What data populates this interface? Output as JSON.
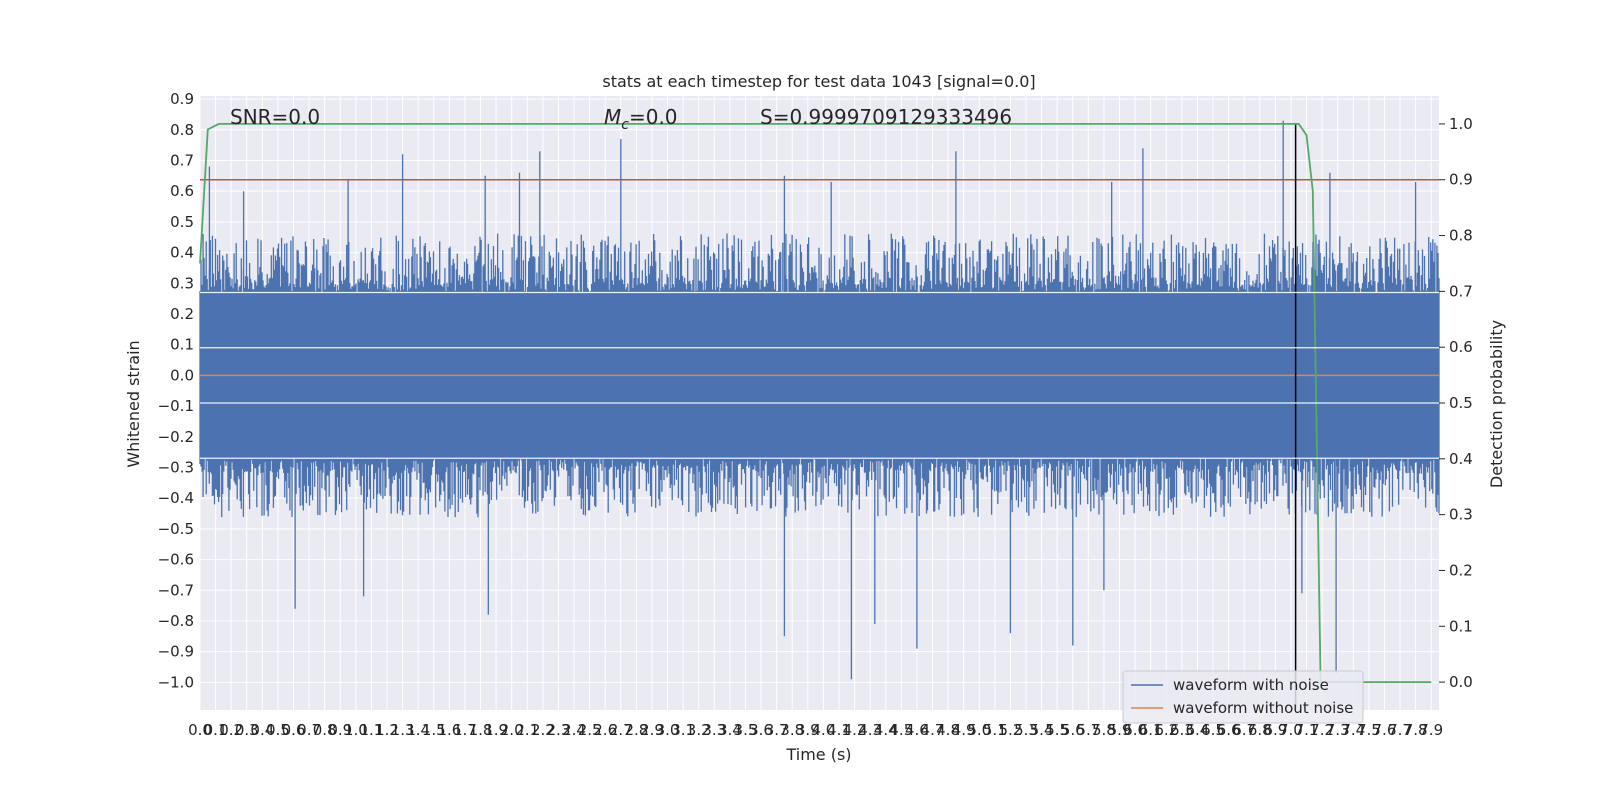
{
  "chart_data": {
    "type": "line",
    "title": "stats at each timestep for test data 1043 [signal=0.0]",
    "xlabel": "Time (s)",
    "ylabel": "Whitened strain",
    "y2label": "Detection probability",
    "xlim": [
      0.0,
      7.95
    ],
    "ylim": [
      -1.09,
      0.91
    ],
    "y2lim": [
      -0.05,
      1.05
    ],
    "grid": true,
    "legend_position": "lower-right",
    "x_ticks": [
      "0.0",
      "0.1",
      "0.2",
      "0.3",
      "0.4",
      "0.5",
      "0.6",
      "0.7",
      "0.8",
      "0.9",
      "1.0",
      "1.1",
      "1.2",
      "1.3",
      "1.4",
      "1.5",
      "1.6",
      "1.7",
      "1.8",
      "1.9",
      "2.0",
      "2.1",
      "2.2",
      "2.3",
      "2.4",
      "2.5",
      "2.6",
      "2.7",
      "2.8",
      "2.9",
      "3.0",
      "3.1",
      "3.2",
      "3.3",
      "3.4",
      "3.5",
      "3.6",
      "3.7",
      "3.8",
      "3.9",
      "4.0",
      "4.1",
      "4.2",
      "4.3",
      "4.4",
      "4.5",
      "4.6",
      "4.7",
      "4.8",
      "4.9",
      "5.0",
      "5.1",
      "5.2",
      "5.3",
      "5.4",
      "5.5",
      "5.6",
      "5.7",
      "5.8",
      "5.9",
      "6.0",
      "6.1",
      "6.2",
      "6.3",
      "6.4",
      "6.5",
      "6.6",
      "6.7",
      "6.8",
      "6.9",
      "7.0",
      "7.1",
      "7.2",
      "7.3",
      "7.4",
      "7.5",
      "7.6",
      "7.7",
      "7.8",
      "7.9"
    ],
    "y_ticks": [
      "0.9",
      "0.8",
      "0.7",
      "0.6",
      "0.5",
      "0.4",
      "0.3",
      "0.2",
      "0.1",
      "0.0",
      "−0.1",
      "−0.2",
      "−0.3",
      "−0.4",
      "−0.5",
      "−0.6",
      "−0.7",
      "−0.8",
      "−0.9",
      "−1.0"
    ],
    "y2_ticks": [
      "0.0",
      "0.1",
      "0.2",
      "0.3",
      "0.4",
      "0.5",
      "0.6",
      "0.7",
      "0.8",
      "0.9",
      "1.0"
    ],
    "annotations": {
      "snr": "SNR=0.0",
      "mc_symbol": "M",
      "mc_sub": "c",
      "mc_value": "=0.0",
      "s": "S=0.9999709129333496"
    },
    "series": [
      {
        "name": "waveform with noise",
        "color": "#4c72b0",
        "axis": "left",
        "band_envelope": {
          "typical_amplitude": 0.44,
          "spikes_high": [
            [
              0.06,
              0.68
            ],
            [
              0.28,
              0.6
            ],
            [
              0.95,
              0.64
            ],
            [
              1.3,
              0.72
            ],
            [
              1.83,
              0.65
            ],
            [
              2.05,
              0.66
            ],
            [
              2.18,
              0.73
            ],
            [
              2.7,
              0.77
            ],
            [
              3.75,
              0.65
            ],
            [
              4.05,
              0.63
            ],
            [
              4.85,
              0.73
            ],
            [
              5.85,
              0.63
            ],
            [
              6.05,
              0.74
            ],
            [
              6.95,
              0.83
            ],
            [
              7.25,
              0.66
            ],
            [
              7.8,
              0.63
            ]
          ],
          "spikes_low": [
            [
              0.61,
              -0.76
            ],
            [
              1.05,
              -0.72
            ],
            [
              1.85,
              -0.78
            ],
            [
              3.75,
              -0.85
            ],
            [
              4.18,
              -0.99
            ],
            [
              4.33,
              -0.81
            ],
            [
              4.6,
              -0.89
            ],
            [
              5.2,
              -0.84
            ],
            [
              5.6,
              -0.88
            ],
            [
              5.8,
              -0.7
            ],
            [
              7.07,
              -0.71
            ],
            [
              7.29,
              -0.97
            ]
          ]
        }
      },
      {
        "name": "waveform without noise",
        "color": "#dd8452",
        "axis": "left",
        "x": [
          0.0,
          7.95
        ],
        "y": [
          0.0,
          0.0
        ]
      },
      {
        "name": "detection probability",
        "color": "#55a868",
        "axis": "right",
        "x": [
          0.0,
          0.05,
          0.12,
          0.5,
          1.0,
          2.0,
          3.0,
          4.0,
          5.0,
          6.0,
          7.0,
          7.05,
          7.1,
          7.14,
          7.19,
          7.3,
          7.9
        ],
        "y": [
          0.75,
          0.99,
          1.0,
          1.0,
          1.0,
          1.0,
          1.0,
          1.0,
          1.0,
          1.0,
          1.0,
          1.0,
          0.98,
          0.88,
          0.0,
          0.0,
          0.0
        ]
      }
    ],
    "threshold_line": {
      "value": 0.9,
      "axis": "right",
      "color": "#c44e52"
    },
    "vertical_marker": {
      "x": 7.03,
      "color": "#000000"
    }
  }
}
